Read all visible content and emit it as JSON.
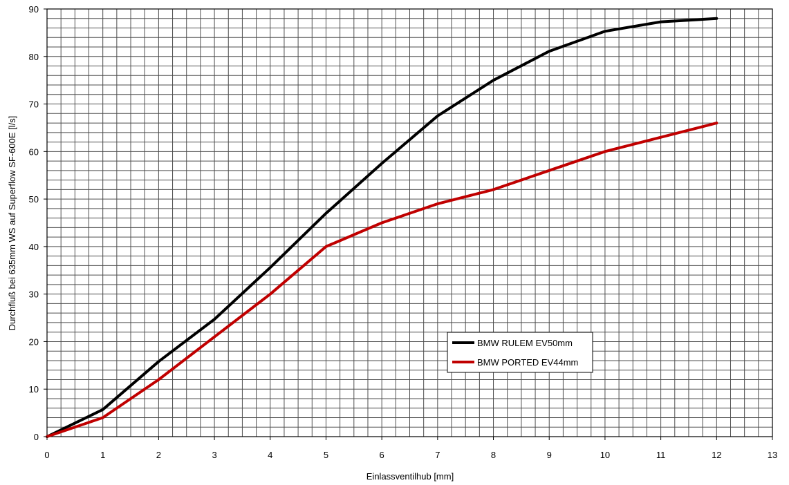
{
  "chart_data": {
    "type": "line",
    "xlabel": "Einlassventilhub [mm]",
    "ylabel": "Durchfluß bei 635mm WS auf Superflow SF-600E [l/s]",
    "xlim": [
      0,
      13
    ],
    "ylim": [
      0,
      90
    ],
    "x_ticks": [
      "0",
      "1",
      "2",
      "3",
      "4",
      "5",
      "6",
      "7",
      "8",
      "9",
      "10",
      "11",
      "12",
      "13"
    ],
    "y_ticks": [
      "0",
      "10",
      "20",
      "30",
      "40",
      "50",
      "60",
      "70",
      "80",
      "90"
    ],
    "grid": true,
    "legend_position": "bottom-right",
    "series": [
      {
        "name": "BMW RULEM EV50mm",
        "color": "#000000",
        "x": [
          0,
          1,
          2,
          3,
          4,
          5,
          6,
          7,
          8,
          9,
          10,
          11,
          12
        ],
        "y": [
          0,
          5.7,
          15.8,
          24.7,
          35.6,
          47,
          57.5,
          67.5,
          75,
          81.1,
          85.3,
          87.3,
          88
        ]
      },
      {
        "name": "BMW PORTED EV44mm",
        "color": "#c00000",
        "x": [
          0,
          1,
          2,
          3,
          4,
          5,
          6,
          7,
          8,
          9,
          10,
          11,
          12
        ],
        "y": [
          0,
          4,
          12,
          21,
          30,
          40,
          45,
          49,
          52,
          56,
          60,
          63,
          66
        ]
      }
    ]
  }
}
